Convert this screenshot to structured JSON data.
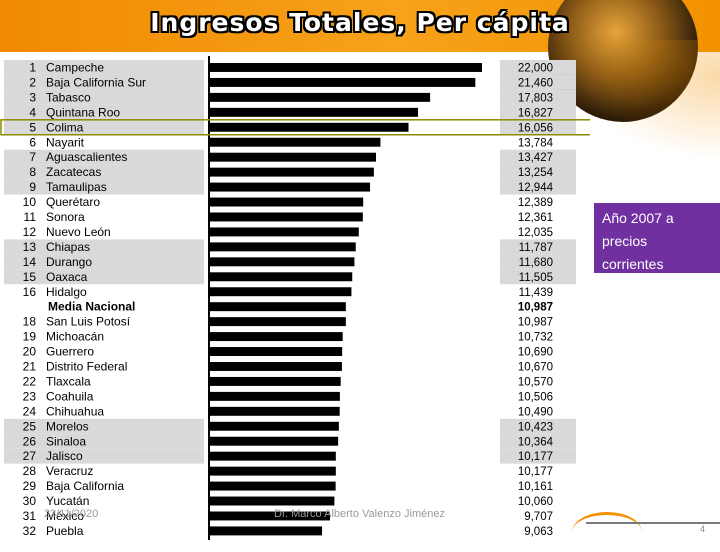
{
  "slide": {
    "title": "Ingresos Totales, Per cápita",
    "note_lines": [
      "Año 2007 a",
      "precios",
      "corrientes"
    ],
    "footer_date": "23/11/2020",
    "footer_author": "Dr. Marco Alberto Valenzo Jiménez",
    "page_number": "4"
  },
  "colors": {
    "banner": "#f39200",
    "note_bg": "#7030a0",
    "bar": "#000000",
    "row_shade": "#d9d9d9",
    "highlight_border": "#8b8b00"
  },
  "chart_data": {
    "type": "bar",
    "orientation": "horizontal",
    "highlighted": "Colima",
    "rows": [
      {
        "rank": "1",
        "name": "Campeche",
        "value": 22000,
        "label": "22,000",
        "shaded": true
      },
      {
        "rank": "2",
        "name": "Baja California Sur",
        "value": 21460,
        "label": "21,460",
        "shaded": true
      },
      {
        "rank": "3",
        "name": "Tabasco",
        "value": 17803,
        "label": "17,803",
        "shaded": true
      },
      {
        "rank": "4",
        "name": "Quintana Roo",
        "value": 16827,
        "label": "16,827",
        "shaded": true
      },
      {
        "rank": "5",
        "name": "Colima",
        "value": 16056,
        "label": "16,056",
        "shaded": true
      },
      {
        "rank": "6",
        "name": "Nayarit",
        "value": 13784,
        "label": "13,784",
        "shaded": false
      },
      {
        "rank": "7",
        "name": "Aguascalientes",
        "value": 13427,
        "label": "13,427",
        "shaded": true
      },
      {
        "rank": "8",
        "name": "Zacatecas",
        "value": 13254,
        "label": "13,254",
        "shaded": true
      },
      {
        "rank": "9",
        "name": "Tamaulipas",
        "value": 12944,
        "label": "12,944",
        "shaded": true
      },
      {
        "rank": "10",
        "name": "Querétaro",
        "value": 12389,
        "label": "12,389",
        "shaded": false
      },
      {
        "rank": "11",
        "name": "Sonora",
        "value": 12361,
        "label": "12,361",
        "shaded": false
      },
      {
        "rank": "12",
        "name": "Nuevo León",
        "value": 12035,
        "label": "12,035",
        "shaded": false
      },
      {
        "rank": "13",
        "name": "Chiapas",
        "value": 11787,
        "label": "11,787",
        "shaded": true
      },
      {
        "rank": "14",
        "name": "Durango",
        "value": 11680,
        "label": "11,680",
        "shaded": true
      },
      {
        "rank": "15",
        "name": "Oaxaca",
        "value": 11505,
        "label": "11,505",
        "shaded": true
      },
      {
        "rank": "16",
        "name": "Hidalgo",
        "value": 11439,
        "label": "11,439",
        "shaded": false
      },
      {
        "rank": "",
        "name": "Media Nacional",
        "value": 10987,
        "label": "10,987",
        "shaded": false,
        "bold": true
      },
      {
        "rank": "18",
        "name": "San Luis Potosí",
        "value": 10987,
        "label": "10,987",
        "shaded": false
      },
      {
        "rank": "19",
        "name": "Michoacán",
        "value": 10732,
        "label": "10,732",
        "shaded": false
      },
      {
        "rank": "20",
        "name": "Guerrero",
        "value": 10690,
        "label": "10,690",
        "shaded": false
      },
      {
        "rank": "21",
        "name": "Distrito Federal",
        "value": 10670,
        "label": "10,670",
        "shaded": false
      },
      {
        "rank": "22",
        "name": "Tlaxcala",
        "value": 10570,
        "label": "10,570",
        "shaded": false
      },
      {
        "rank": "23",
        "name": "Coahuila",
        "value": 10506,
        "label": "10,506",
        "shaded": false
      },
      {
        "rank": "24",
        "name": "Chihuahua",
        "value": 10490,
        "label": "10,490",
        "shaded": false
      },
      {
        "rank": "25",
        "name": "Morelos",
        "value": 10423,
        "label": "10,423",
        "shaded": true
      },
      {
        "rank": "26",
        "name": "Sinaloa",
        "value": 10364,
        "label": "10,364",
        "shaded": true
      },
      {
        "rank": "27",
        "name": "Jalisco",
        "value": 10177,
        "label": "10,177",
        "shaded": true
      },
      {
        "rank": "28",
        "name": "Veracruz",
        "value": 10177,
        "label": "10,177",
        "shaded": false
      },
      {
        "rank": "29",
        "name": "Baja California",
        "value": 10161,
        "label": "10,161",
        "shaded": false
      },
      {
        "rank": "30",
        "name": "Yucatán",
        "value": 10060,
        "label": "10,060",
        "shaded": false
      },
      {
        "rank": "31",
        "name": "México",
        "value": 9707,
        "label": "9,707",
        "shaded": false
      },
      {
        "rank": "32",
        "name": "Puebla",
        "value": 9063,
        "label": "9,063",
        "shaded": false
      }
    ]
  }
}
